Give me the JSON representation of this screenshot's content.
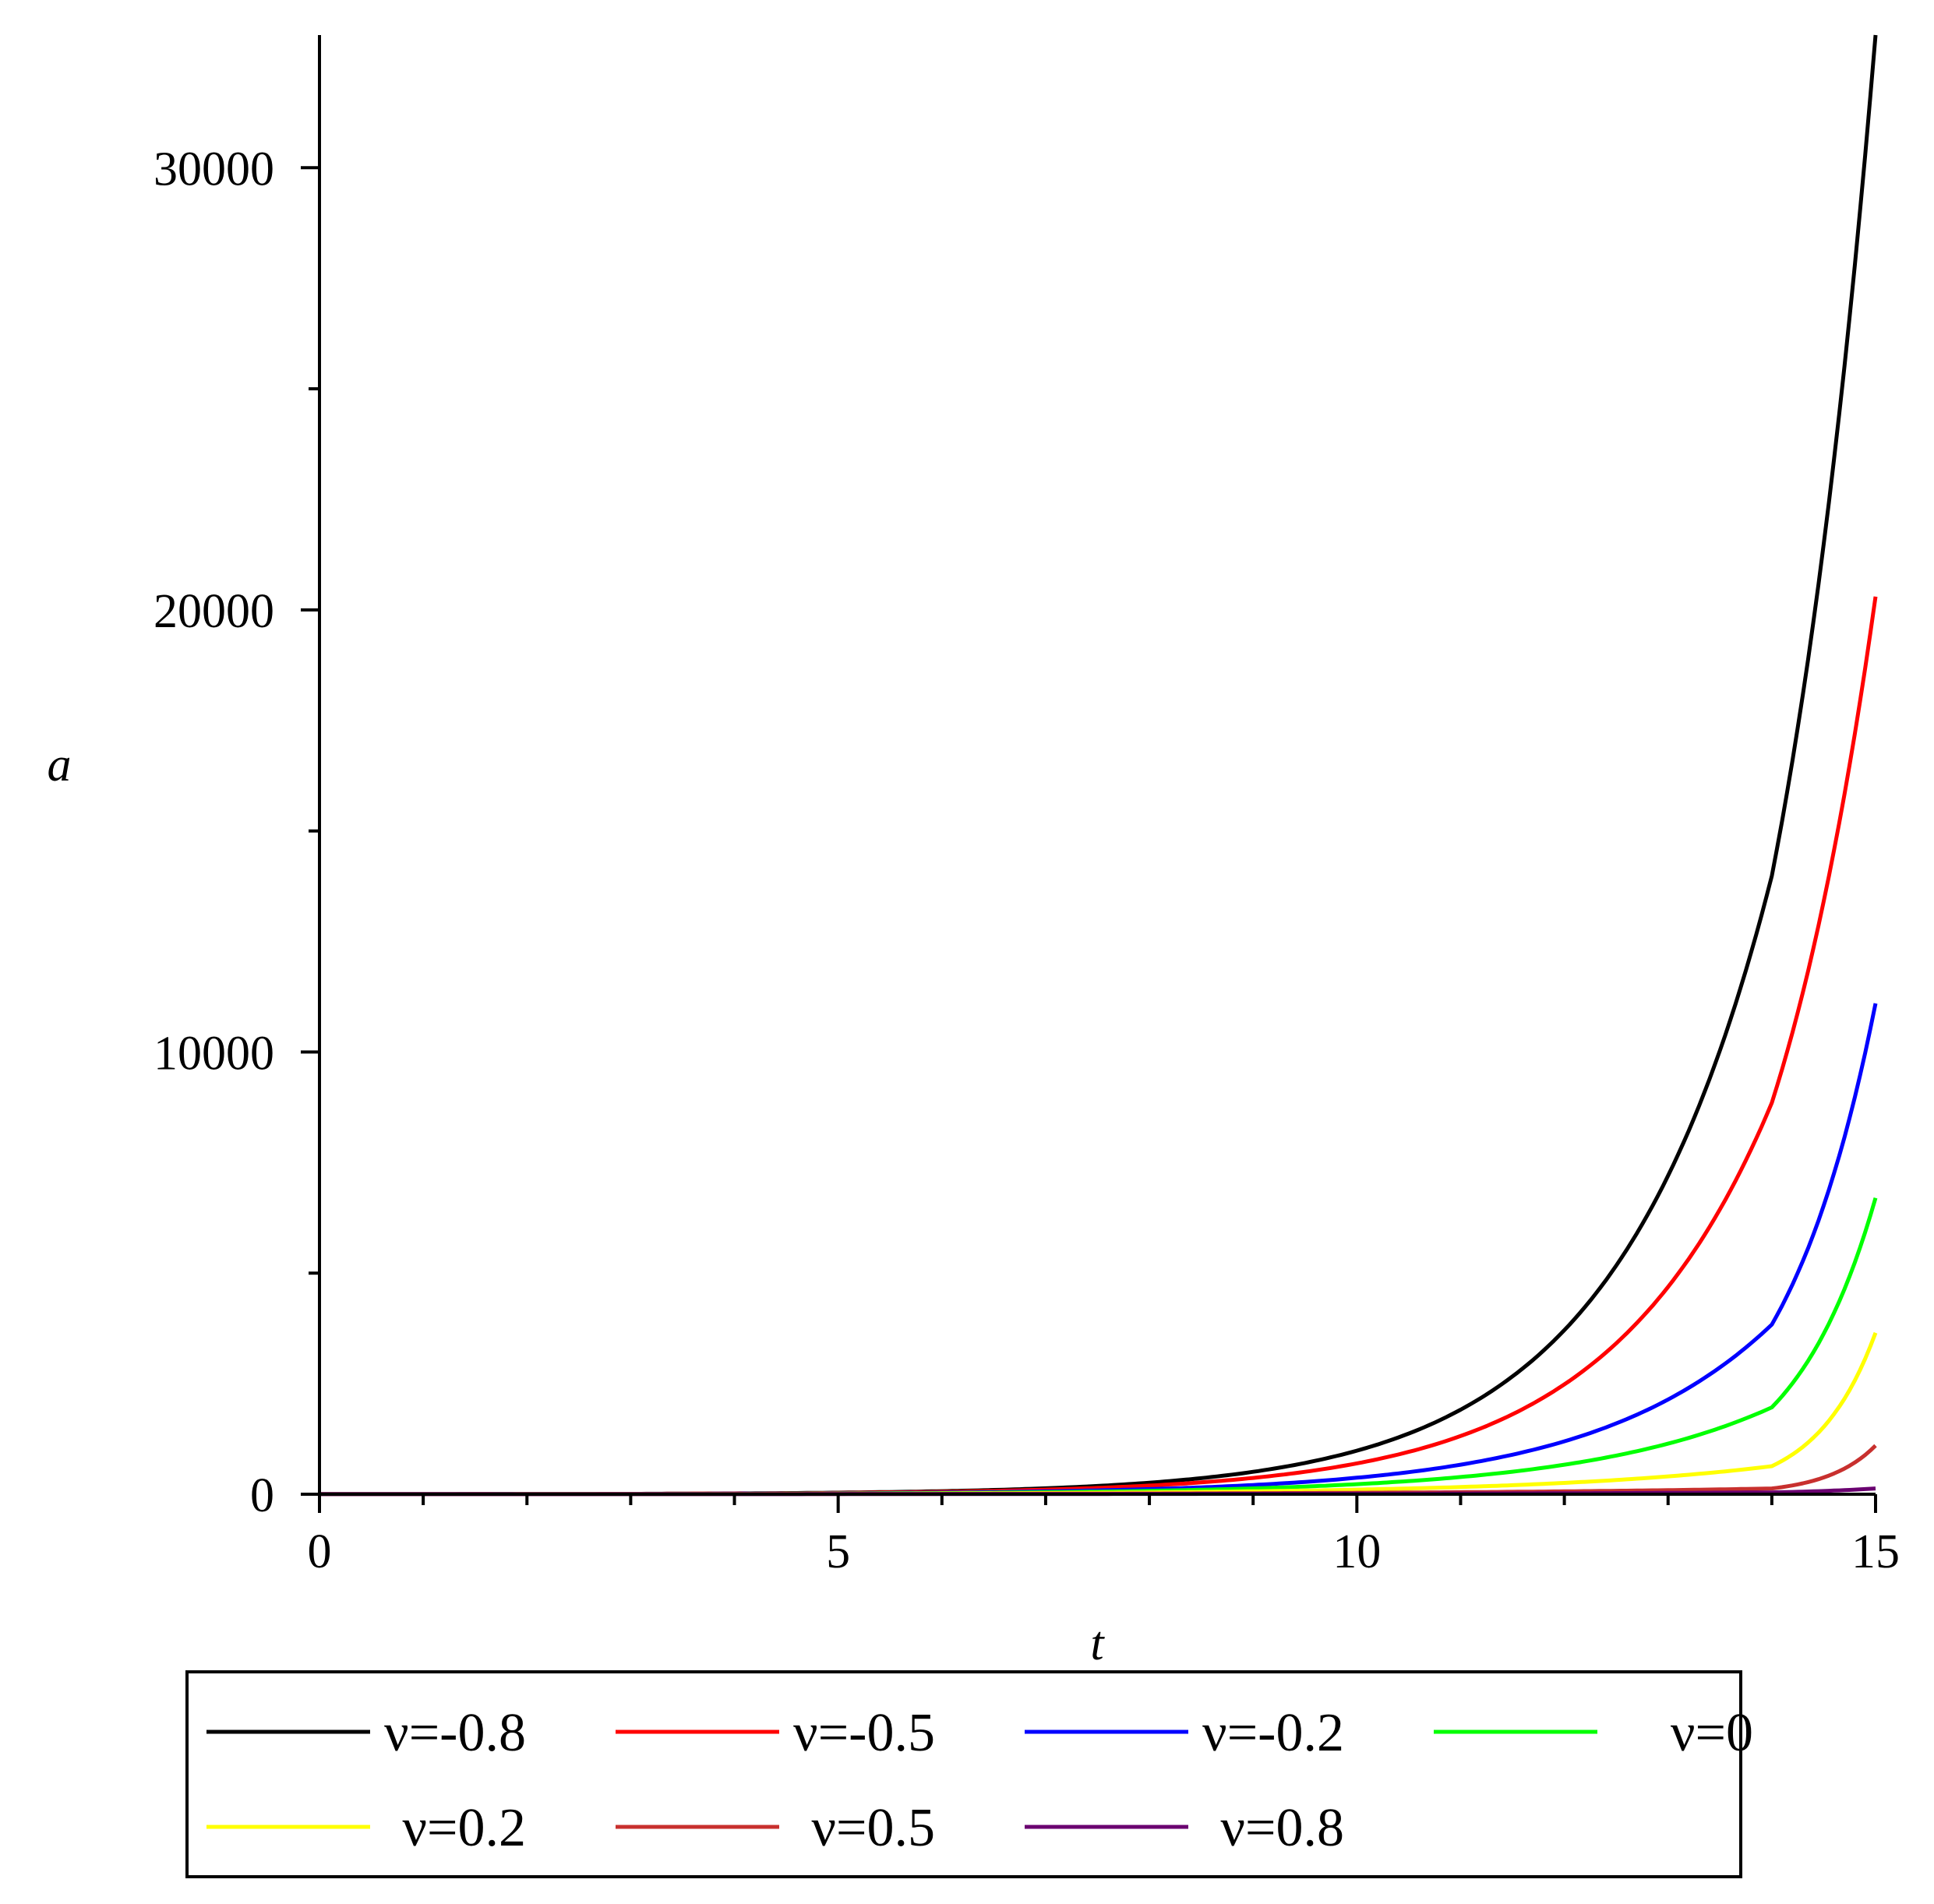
{
  "chart_data": {
    "type": "line",
    "title": "",
    "xlabel": "t",
    "ylabel": "a",
    "xlim": [
      0,
      15
    ],
    "ylim": [
      0,
      33000
    ],
    "x_ticks": [
      0,
      5,
      10,
      15
    ],
    "y_ticks": [
      0,
      10000,
      20000,
      30000
    ],
    "x_tick_labels": [
      "0",
      "5",
      "10",
      "15"
    ],
    "y_tick_labels": [
      "0",
      "10000",
      "20000",
      "30000"
    ],
    "x_minor_step": 1,
    "y_minor_step": 5000,
    "grid": false,
    "legend_position": "bottom",
    "x": [
      0,
      1,
      2,
      3,
      4,
      5,
      6,
      7,
      8,
      9,
      10,
      11,
      12,
      13,
      14,
      15
    ],
    "series": [
      {
        "name": "ν=-0.8",
        "color": "#000000",
        "values": [
          1,
          2,
          5,
          9,
          18,
          36,
          69,
          134,
          261,
          507,
          985,
          1912,
          3711,
          7204,
          13986,
          33000
        ]
      },
      {
        "name": "ν=-0.5",
        "color": "#ff0000",
        "values": [
          1,
          2,
          4,
          8,
          15,
          29,
          55,
          104,
          195,
          369,
          697,
          1316,
          2484,
          4689,
          8853,
          20300
        ]
      },
      {
        "name": "ν=-0.2",
        "color": "#0000ff",
        "values": [
          1,
          2,
          3,
          6,
          11,
          20,
          36,
          65,
          116,
          208,
          373,
          668,
          1196,
          2143,
          3838,
          11100
        ]
      },
      {
        "name": "ν=0",
        "color": "#00ff00",
        "values": [
          1,
          2,
          3,
          5,
          9,
          15,
          26,
          45,
          77,
          132,
          227,
          389,
          667,
          1144,
          1964,
          6700
        ]
      },
      {
        "name": "ν=0.2",
        "color": "#ffff00",
        "values": [
          1,
          1,
          3,
          4,
          7,
          11,
          17,
          27,
          42,
          66,
          104,
          163,
          256,
          403,
          634,
          3650
        ]
      },
      {
        "name": "ν=0.5",
        "color": "#c8302e",
        "values": [
          1,
          1,
          2,
          3,
          4,
          6,
          8,
          12,
          16,
          23,
          33,
          46,
          65,
          92,
          130,
          1100
        ]
      },
      {
        "name": "ν=0.8",
        "color": "#6a0070",
        "values": [
          1,
          1,
          1,
          2,
          2,
          3,
          4,
          5,
          7,
          9,
          12,
          16,
          22,
          30,
          41,
          130
        ]
      }
    ]
  }
}
